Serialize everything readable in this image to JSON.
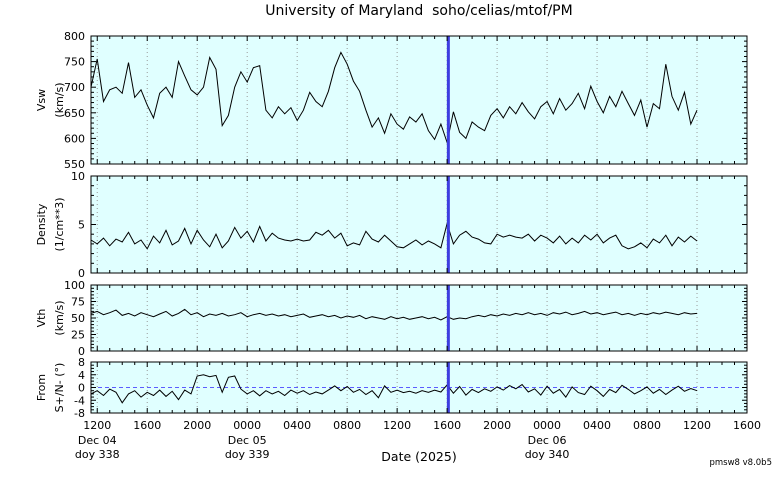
{
  "title": "University of Maryland  soho/celias/mtof/PM",
  "x_axis_title": "Date (2025)",
  "version": "pmsw8 v8.0b5",
  "colors": {
    "panel_bg": "#e0ffff",
    "trace": "#000000",
    "grid": "#9a9a9a",
    "frame": "#000000",
    "marker_blue": "#3d3de0",
    "zero_line": "#5c5cff"
  },
  "chart_data": {
    "type": "line",
    "x_axis": {
      "unit": "hours since 1200 Dec 04 2025",
      "t_min": -0.5,
      "t_max": 52,
      "major_tick_start": 0,
      "major_tick_step": 4,
      "minor_tick_step": 1,
      "tick_labels": [
        "1200",
        "1600",
        "2000",
        "0000",
        "0400",
        "0800",
        "1200",
        "1600",
        "2000",
        "0000",
        "0400",
        "0800",
        "1200",
        "1600"
      ],
      "date_labels": [
        {
          "t": 0,
          "line1": "Dec 04",
          "line2": "doy 338"
        },
        {
          "t": 12,
          "line1": "Dec 05",
          "line2": "doy 339"
        },
        {
          "t": 36,
          "line1": "Dec 06",
          "line2": "doy 340"
        }
      ],
      "grid": "dotted-vertical-at-major-ticks"
    },
    "marker_line": {
      "t": 28.1,
      "color": "#3d3de0"
    },
    "panels": [
      {
        "id": "vsw",
        "ylabel1": "Vsw",
        "ylabel2": "(km/s)",
        "ylim": [
          550,
          800
        ],
        "yticks": [
          550,
          600,
          650,
          700,
          750,
          800
        ],
        "y_minor_step": 10,
        "zero_line": false,
        "series": {
          "x_start": -0.5,
          "x_step": 0.5,
          "values": [
            700,
            755,
            672,
            695,
            700,
            688,
            748,
            680,
            695,
            665,
            640,
            688,
            700,
            680,
            750,
            722,
            695,
            685,
            700,
            758,
            735,
            625,
            645,
            700,
            730,
            710,
            738,
            742,
            655,
            640,
            662,
            648,
            660,
            635,
            655,
            690,
            672,
            662,
            692,
            738,
            768,
            745,
            712,
            692,
            655,
            622,
            640,
            610,
            648,
            628,
            618,
            642,
            632,
            648,
            615,
            598,
            628,
            592,
            652,
            612,
            600,
            632,
            622,
            615,
            645,
            658,
            640,
            662,
            648,
            670,
            652,
            638,
            662,
            672,
            648,
            678,
            655,
            668,
            688,
            658,
            702,
            672,
            650,
            682,
            662,
            692,
            668,
            645,
            675,
            622,
            668,
            658,
            745,
            682,
            655,
            690,
            628,
            655
          ]
        }
      },
      {
        "id": "density",
        "ylabel1": "Density",
        "ylabel2": "(1/cm**3)",
        "ylim": [
          0,
          10
        ],
        "yticks": [
          0,
          5,
          10
        ],
        "y_minor_step": 1,
        "zero_line": false,
        "series": {
          "x_start": -0.5,
          "x_step": 0.5,
          "values": [
            3.4,
            3.0,
            3.6,
            2.8,
            3.5,
            3.2,
            4.2,
            3.0,
            3.4,
            2.5,
            3.8,
            3.1,
            4.4,
            2.9,
            3.3,
            4.6,
            3.0,
            4.4,
            3.4,
            2.7,
            4.0,
            2.6,
            3.3,
            4.7,
            3.6,
            4.3,
            3.2,
            4.8,
            3.3,
            4.1,
            3.6,
            3.4,
            3.3,
            3.5,
            3.3,
            3.4,
            4.2,
            3.9,
            4.4,
            3.6,
            4.1,
            2.8,
            3.1,
            2.9,
            4.3,
            3.5,
            3.2,
            3.9,
            3.3,
            2.7,
            2.6,
            3.0,
            3.4,
            2.9,
            3.3,
            3.0,
            2.6,
            5.1,
            3.0,
            3.9,
            4.3,
            3.7,
            3.5,
            3.1,
            3.0,
            4.0,
            3.7,
            3.9,
            3.7,
            3.6,
            4.0,
            3.3,
            3.9,
            3.6,
            3.1,
            3.8,
            3.0,
            3.6,
            3.1,
            3.9,
            3.4,
            4.0,
            3.1,
            3.6,
            3.9,
            2.8,
            2.5,
            2.7,
            3.1,
            2.6,
            3.5,
            3.1,
            3.9,
            2.8,
            3.7,
            3.2,
            3.8,
            3.3
          ]
        }
      },
      {
        "id": "vth",
        "ylabel1": "Vth",
        "ylabel2": "(km/s)",
        "ylim": [
          0,
          100
        ],
        "yticks": [
          0,
          25,
          50,
          75,
          100
        ],
        "y_minor_step": 5,
        "zero_line": false,
        "series": {
          "x_start": -0.5,
          "x_step": 0.5,
          "values": [
            57,
            60,
            55,
            58,
            62,
            54,
            57,
            53,
            58,
            55,
            52,
            56,
            60,
            53,
            57,
            63,
            55,
            58,
            52,
            56,
            54,
            57,
            53,
            55,
            58,
            52,
            55,
            57,
            54,
            56,
            53,
            55,
            52,
            54,
            56,
            51,
            53,
            55,
            52,
            54,
            50,
            53,
            51,
            54,
            49,
            52,
            50,
            48,
            52,
            49,
            51,
            48,
            50,
            52,
            49,
            51,
            47,
            52,
            48,
            50,
            49,
            52,
            54,
            52,
            55,
            53,
            56,
            54,
            57,
            55,
            58,
            55,
            57,
            54,
            58,
            56,
            59,
            55,
            57,
            60,
            56,
            58,
            55,
            57,
            59,
            55,
            57,
            54,
            57,
            55,
            58,
            56,
            59,
            57,
            55,
            58,
            56,
            57
          ]
        }
      },
      {
        "id": "from-angle",
        "ylabel1": "From",
        "ylabel2": "S+/N- (°)",
        "ylim": [
          -8,
          8
        ],
        "yticks": [
          -8,
          -4,
          0,
          4,
          8
        ],
        "y_minor_step": 1,
        "zero_line": true,
        "series": {
          "x_start": -0.5,
          "x_step": 0.5,
          "values": [
            -2.0,
            -1.0,
            -2.5,
            -0.5,
            -1.5,
            -4.8,
            -2.0,
            -1.0,
            -3.0,
            -1.5,
            -2.5,
            -0.8,
            -2.8,
            -1.2,
            -3.8,
            -0.8,
            -2.0,
            3.6,
            4.0,
            3.4,
            3.8,
            -1.5,
            3.2,
            3.6,
            -0.5,
            -2.0,
            -1.0,
            -2.6,
            -1.0,
            -2.0,
            -1.2,
            -2.5,
            -0.8,
            -1.8,
            -1.0,
            -2.2,
            -1.4,
            -2.0,
            -0.8,
            0.5,
            -1.0,
            0.3,
            -1.5,
            -0.6,
            -2.2,
            -1.0,
            -3.2,
            0.5,
            -1.5,
            -0.8,
            -1.6,
            -1.2,
            -1.8,
            -1.0,
            -1.5,
            -0.8,
            -1.4,
            0.8,
            -1.8,
            0.3,
            -2.4,
            -0.6,
            -1.6,
            -0.4,
            -1.2,
            0.2,
            -0.8,
            0.6,
            -0.4,
            0.9,
            -1.4,
            -0.4,
            -2.4,
            0.4,
            -1.8,
            -0.6,
            -3.0,
            0.2,
            -1.6,
            -2.2,
            0.4,
            -1.0,
            -2.8,
            -0.6,
            -1.6,
            0.7,
            -0.6,
            -2.0,
            -1.0,
            0.2,
            -1.8,
            -0.6,
            -2.2,
            -0.8,
            0.4,
            -1.2,
            -0.3,
            -1.0
          ]
        }
      }
    ]
  }
}
